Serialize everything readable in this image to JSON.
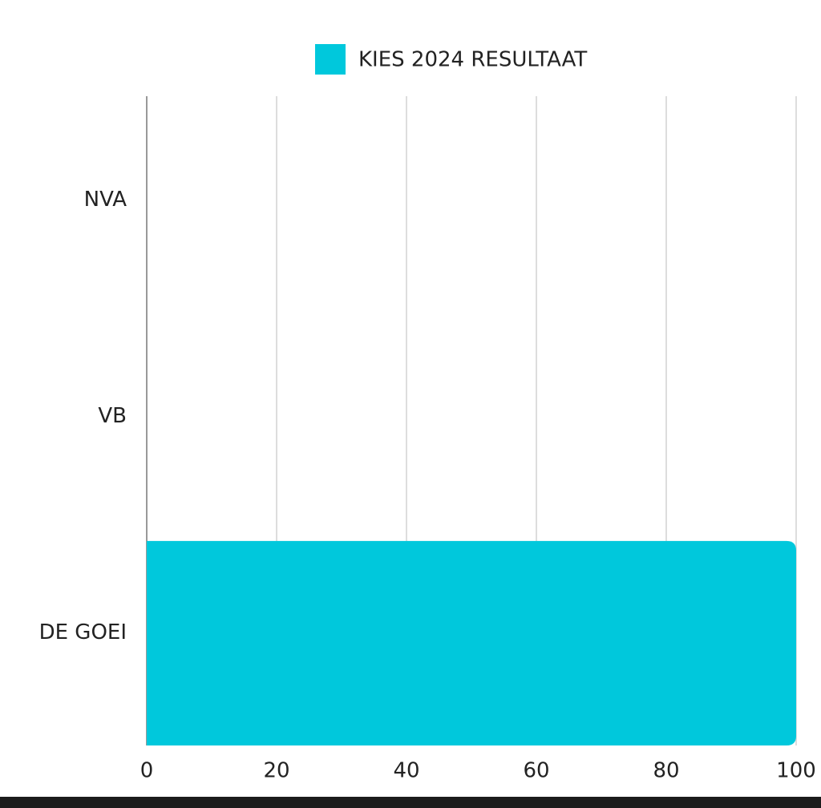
{
  "chart_data": {
    "type": "hbar",
    "categories": [
      "NVA",
      "VB",
      "DE GOEI"
    ],
    "series": [
      {
        "name": "KIES 2024 RESULTAAT",
        "color": "#00c8dc",
        "values": [
          0,
          0,
          100
        ]
      }
    ],
    "xlim": [
      0,
      100
    ],
    "xticks": [
      0,
      20,
      40,
      60,
      80,
      100
    ],
    "grid": true,
    "legend": "top"
  }
}
